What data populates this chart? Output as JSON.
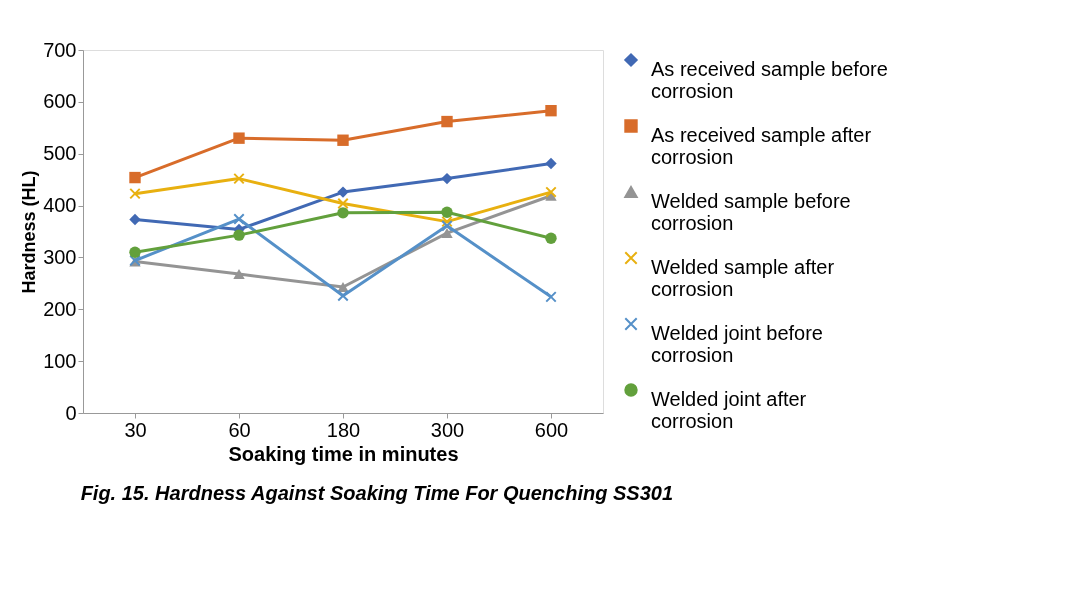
{
  "chart_data": {
    "type": "line",
    "xlabel": "Soaking time in minutes",
    "ylabel": "Hardness (HL)",
    "categories": [
      "30",
      "60",
      "180",
      "300",
      "600"
    ],
    "ylim": [
      0,
      700
    ],
    "yticks": [
      0,
      100,
      200,
      300,
      400,
      500,
      600,
      700
    ],
    "grid": false,
    "legend": "right",
    "series": [
      {
        "name": "As received sample before corrosion",
        "color": "#4169b4",
        "marker": "diamond",
        "values": [
          373,
          354,
          426,
          452,
          481
        ]
      },
      {
        "name": "As received sample after corrosion",
        "color": "#d86c2a",
        "marker": "square",
        "values": [
          454,
          530,
          526,
          562,
          583
        ]
      },
      {
        "name": "Welded sample before corrosion",
        "color": "#949494",
        "marker": "triangle",
        "values": [
          292,
          268,
          243,
          347,
          419
        ]
      },
      {
        "name": "Welded sample after corrosion",
        "color": "#e8b010",
        "marker": "cross",
        "values": [
          423,
          452,
          404,
          369,
          426
        ]
      },
      {
        "name": "Welded joint before corrosion",
        "color": "#5590c8",
        "marker": "cross",
        "values": [
          294,
          374,
          226,
          361,
          224
        ]
      },
      {
        "name": "Welded joint after corrosion",
        "color": "#62a03c",
        "marker": "circle",
        "values": [
          310,
          343,
          386,
          387,
          337
        ]
      }
    ],
    "annotations": [
      "Fig. 15. Hardness Against Soaking Time For Quenching SS301"
    ]
  }
}
